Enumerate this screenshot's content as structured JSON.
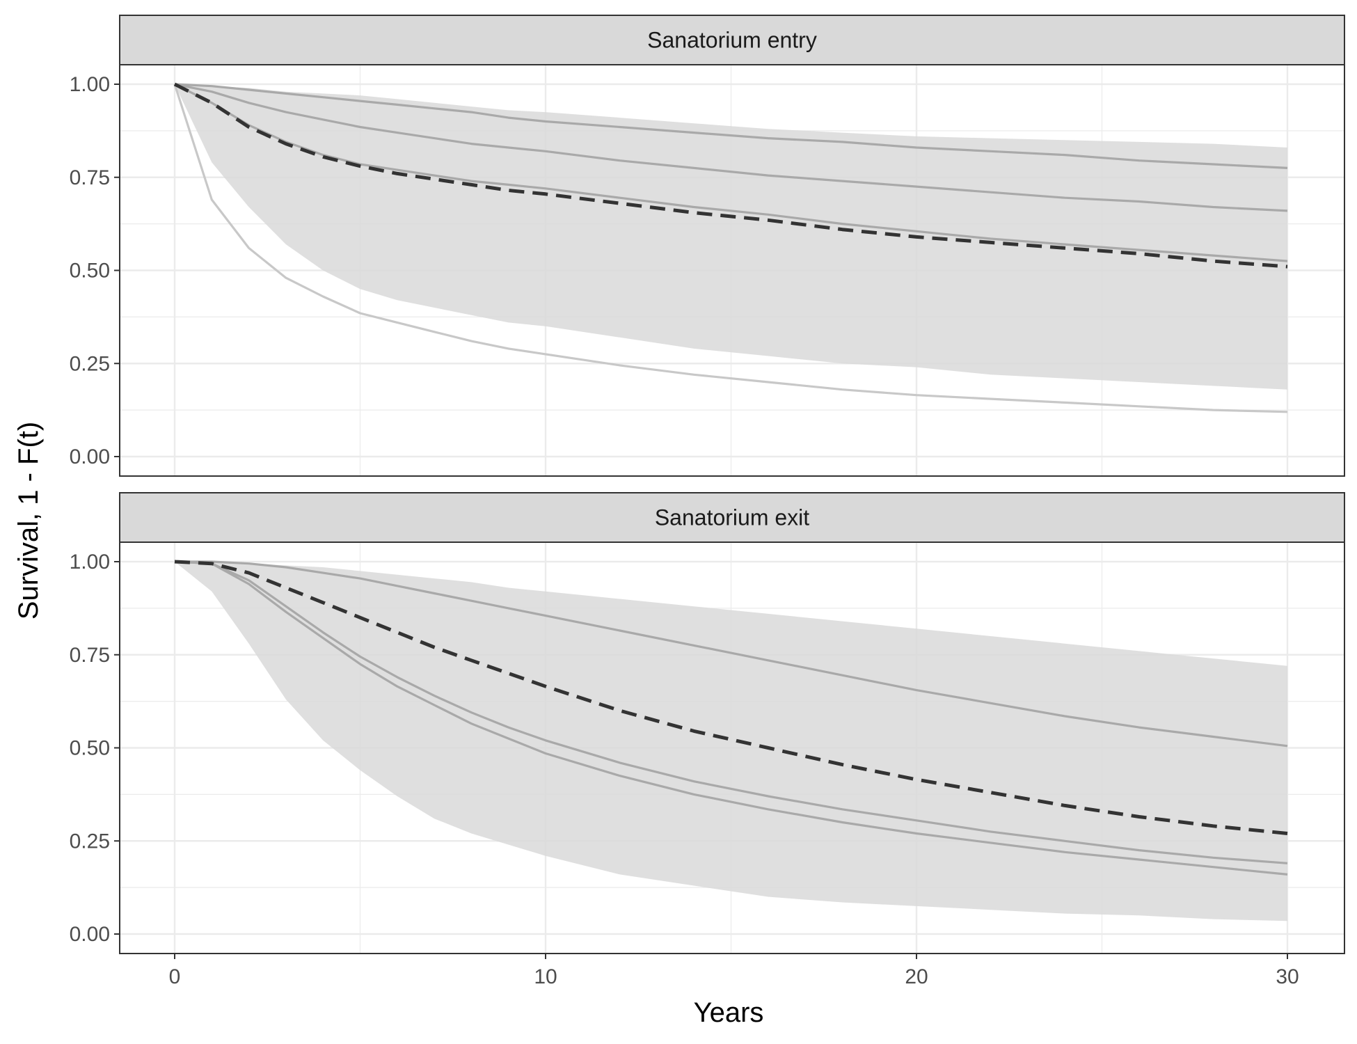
{
  "chart_data": {
    "type": "line",
    "xlabel": "Years",
    "ylabel": "Survival, 1 - F(t)",
    "xlim": [
      0,
      30
    ],
    "ylim": [
      0,
      1
    ],
    "x_ticks": [
      "0",
      "10",
      "20",
      "30"
    ],
    "y_ticks": [
      "0.00",
      "0.25",
      "0.50",
      "0.75",
      "1.00"
    ],
    "grid": true,
    "legend": "none",
    "colors": {
      "ribbon": "#d9d9d9",
      "series_line": "#a9a9a9",
      "light_line": "#c8c8c8",
      "mean_dashed": "#333333",
      "strip_fill": "#d9d9d9",
      "grid": "#ebebeb"
    },
    "x": [
      0,
      1,
      2,
      3,
      4,
      5,
      6,
      7,
      8,
      9,
      10,
      12,
      14,
      16,
      18,
      20,
      22,
      24,
      26,
      28,
      30
    ],
    "panels": [
      {
        "strip": "Sanatorium entry",
        "ribbon": {
          "lower": [
            1.0,
            0.79,
            0.67,
            0.57,
            0.5,
            0.45,
            0.42,
            0.4,
            0.38,
            0.36,
            0.35,
            0.32,
            0.29,
            0.27,
            0.25,
            0.24,
            0.22,
            0.21,
            0.2,
            0.19,
            0.18
          ],
          "upper": [
            1.0,
            0.995,
            0.99,
            0.98,
            0.975,
            0.97,
            0.96,
            0.95,
            0.94,
            0.93,
            0.925,
            0.91,
            0.895,
            0.88,
            0.87,
            0.86,
            0.855,
            0.85,
            0.845,
            0.84,
            0.83
          ]
        },
        "series": [
          {
            "style": "solid",
            "values": [
              1.0,
              0.995,
              0.985,
              0.975,
              0.965,
              0.955,
              0.945,
              0.935,
              0.925,
              0.91,
              0.9,
              0.885,
              0.87,
              0.855,
              0.845,
              0.83,
              0.82,
              0.81,
              0.795,
              0.785,
              0.775
            ]
          },
          {
            "style": "solid",
            "values": [
              1.0,
              0.98,
              0.95,
              0.925,
              0.905,
              0.885,
              0.87,
              0.855,
              0.84,
              0.83,
              0.82,
              0.795,
              0.775,
              0.755,
              0.74,
              0.725,
              0.71,
              0.695,
              0.685,
              0.67,
              0.66
            ]
          },
          {
            "style": "solid",
            "values": [
              1.0,
              0.95,
              0.89,
              0.845,
              0.81,
              0.785,
              0.77,
              0.755,
              0.74,
              0.73,
              0.72,
              0.695,
              0.67,
              0.65,
              0.625,
              0.605,
              0.585,
              0.57,
              0.555,
              0.54,
              0.525
            ]
          },
          {
            "style": "light",
            "values": [
              1.0,
              0.69,
              0.56,
              0.48,
              0.43,
              0.385,
              0.36,
              0.335,
              0.31,
              0.29,
              0.275,
              0.245,
              0.22,
              0.2,
              0.18,
              0.165,
              0.155,
              0.145,
              0.135,
              0.125,
              0.12
            ]
          },
          {
            "style": "dashed",
            "values": [
              1.0,
              0.95,
              0.885,
              0.84,
              0.805,
              0.78,
              0.76,
              0.745,
              0.73,
              0.715,
              0.705,
              0.68,
              0.655,
              0.635,
              0.61,
              0.59,
              0.575,
              0.56,
              0.545,
              0.525,
              0.51
            ]
          }
        ]
      },
      {
        "strip": "Sanatorium exit",
        "ribbon": {
          "lower": [
            1.0,
            0.92,
            0.78,
            0.63,
            0.52,
            0.44,
            0.37,
            0.31,
            0.27,
            0.24,
            0.21,
            0.16,
            0.13,
            0.1,
            0.085,
            0.075,
            0.065,
            0.055,
            0.05,
            0.04,
            0.035
          ],
          "upper": [
            1.0,
            1.0,
            0.995,
            0.99,
            0.985,
            0.975,
            0.965,
            0.955,
            0.945,
            0.93,
            0.92,
            0.9,
            0.88,
            0.86,
            0.84,
            0.82,
            0.8,
            0.78,
            0.76,
            0.74,
            0.72
          ]
        },
        "series": [
          {
            "style": "solid",
            "values": [
              1.0,
              1.0,
              0.995,
              0.985,
              0.97,
              0.955,
              0.935,
              0.915,
              0.895,
              0.875,
              0.855,
              0.815,
              0.775,
              0.735,
              0.695,
              0.655,
              0.62,
              0.585,
              0.555,
              0.53,
              0.505
            ]
          },
          {
            "style": "solid",
            "values": [
              1.0,
              0.995,
              0.95,
              0.88,
              0.81,
              0.745,
              0.69,
              0.64,
              0.595,
              0.555,
              0.52,
              0.46,
              0.41,
              0.37,
              0.335,
              0.305,
              0.275,
              0.25,
              0.225,
              0.205,
              0.19
            ]
          },
          {
            "style": "solid",
            "values": [
              1.0,
              0.995,
              0.94,
              0.865,
              0.795,
              0.725,
              0.665,
              0.615,
              0.565,
              0.525,
              0.485,
              0.425,
              0.375,
              0.335,
              0.3,
              0.27,
              0.245,
              0.22,
              0.2,
              0.18,
              0.16
            ]
          },
          {
            "style": "dashed",
            "values": [
              1.0,
              0.995,
              0.97,
              0.93,
              0.89,
              0.85,
              0.81,
              0.77,
              0.735,
              0.7,
              0.665,
              0.6,
              0.545,
              0.5,
              0.455,
              0.415,
              0.38,
              0.345,
              0.315,
              0.29,
              0.27
            ]
          }
        ]
      }
    ]
  }
}
